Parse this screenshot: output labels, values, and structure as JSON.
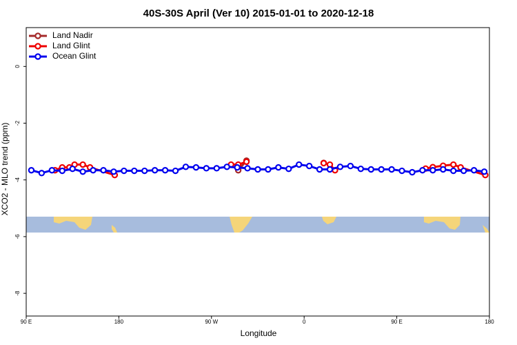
{
  "chart_data": {
    "type": "line",
    "title": "40S-30S April (Ver 10)   2015-01-01 to 2020-12-18",
    "x_label": "Longitude",
    "y_label": "XCO2 - MLO trend (ppm)",
    "xlim": [
      90,
      540
    ],
    "ylim": [
      -8.8,
      1.37
    ],
    "xticks": [
      {
        "value": 90,
        "label": "90 E"
      },
      180,
      {
        "value": 270,
        "label": "90 W"
      },
      {
        "value": 360,
        "label": "0"
      },
      {
        "value": 450,
        "label": "90 E"
      },
      {
        "value": 540,
        "label": "180"
      }
    ],
    "yticks": [
      0,
      -2,
      -4,
      -6,
      -8
    ],
    "legend": "top-left",
    "series": [
      {
        "name": "Land Nadir",
        "color": "#a52a2a",
        "x": [
          296,
          304,
          null,
          379
        ],
        "values": [
          -3.66,
          -3.32,
          null,
          -3.4
        ]
      },
      {
        "name": "Land Glint",
        "color": "#ee0000",
        "x": [
          118,
          125,
          132,
          137,
          145,
          152,
          176,
          null,
          289,
          296,
          304,
          null,
          379,
          385,
          390,
          null,
          478,
          485,
          495,
          505,
          512,
          536
        ],
        "values": [
          -3.66,
          -3.56,
          -3.56,
          -3.46,
          -3.46,
          -3.56,
          -3.83,
          null,
          -3.46,
          -3.46,
          -3.36,
          null,
          -3.41,
          -3.46,
          -3.66,
          null,
          -3.6,
          -3.55,
          -3.5,
          -3.46,
          -3.56,
          -3.83
        ]
      },
      {
        "name": "Ocean Glint",
        "color": "#0000ee",
        "x": [
          95,
          105,
          115,
          125,
          135,
          145,
          155,
          165,
          175,
          185,
          195,
          205,
          215,
          225,
          235,
          245,
          255,
          265,
          275,
          285,
          295,
          305,
          315,
          325,
          335,
          345,
          355,
          365,
          375,
          385,
          395,
          405,
          415,
          425,
          435,
          445,
          455,
          465,
          475,
          485,
          495,
          505,
          515,
          525,
          535
        ],
        "values": [
          -3.66,
          -3.76,
          -3.66,
          -3.68,
          -3.61,
          -3.71,
          -3.66,
          -3.66,
          -3.71,
          -3.68,
          -3.68,
          -3.68,
          -3.66,
          -3.66,
          -3.68,
          -3.54,
          -3.56,
          -3.59,
          -3.59,
          -3.54,
          -3.56,
          -3.59,
          -3.63,
          -3.63,
          -3.56,
          -3.61,
          -3.46,
          -3.51,
          -3.63,
          -3.63,
          -3.54,
          -3.51,
          -3.61,
          -3.63,
          -3.63,
          -3.63,
          -3.68,
          -3.73,
          -3.66,
          -3.66,
          -3.63,
          -3.68,
          -3.68,
          -3.66,
          -3.71
        ]
      }
    ]
  }
}
